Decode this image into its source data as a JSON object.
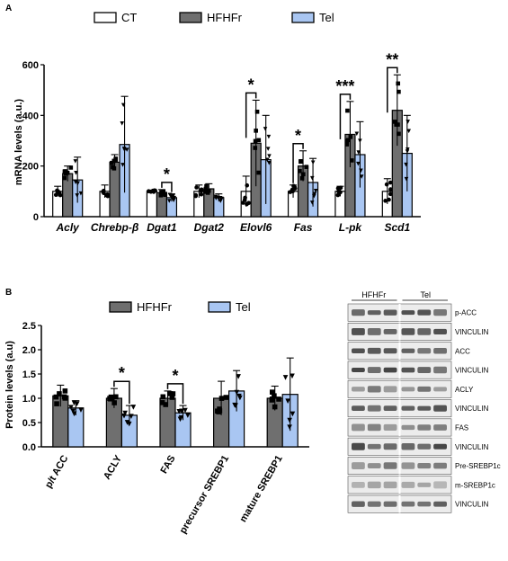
{
  "panel_a_label": "A",
  "panel_b_label": "B",
  "colors": {
    "CT": "#ffffff",
    "HFHFr": "#6f6f6f",
    "Tel": "#a9c6f2",
    "outline": "#000000"
  },
  "chart_data": [
    {
      "type": "bar",
      "panel": "A",
      "ylabel": "mRNA levels (a.u.)",
      "ylim": [
        0,
        600
      ],
      "yticks": [
        0,
        200,
        400,
        600
      ],
      "categories": [
        "Acly",
        "Chrebp-β",
        "Dgat1",
        "Dgat2",
        "Elovl6",
        "Fas",
        "L-pk",
        "Scd1"
      ],
      "series": [
        {
          "name": "CT",
          "values": [
            100,
            100,
            100,
            100,
            100,
            100,
            100,
            100
          ],
          "errors": [
            20,
            25,
            5,
            25,
            60,
            25,
            20,
            50
          ]
        },
        {
          "name": "HFHFr",
          "values": [
            170,
            215,
            95,
            110,
            290,
            200,
            325,
            420
          ],
          "errors": [
            30,
            30,
            12,
            20,
            170,
            60,
            130,
            140
          ]
        },
        {
          "name": "Tel",
          "values": [
            145,
            285,
            75,
            75,
            225,
            135,
            245,
            250
          ],
          "errors": [
            90,
            190,
            15,
            15,
            175,
            95,
            130,
            150
          ]
        }
      ],
      "significance": [
        {
          "category": "Dgat1",
          "between": [
            "HFHFr",
            "Tel"
          ],
          "label": "*"
        },
        {
          "category": "Elovl6",
          "between": [
            "CT",
            "HFHFr"
          ],
          "label": "*"
        },
        {
          "category": "Fas",
          "between": [
            "CT",
            "HFHFr"
          ],
          "label": "*"
        },
        {
          "category": "L-pk",
          "between": [
            "CT",
            "HFHFr"
          ],
          "label": "***"
        },
        {
          "category": "Scd1",
          "between": [
            "CT",
            "HFHFr"
          ],
          "label": "**"
        }
      ],
      "legend": "top"
    },
    {
      "type": "bar",
      "panel": "B",
      "ylabel": "Protein levels (a.u)",
      "ylim": [
        0,
        2.5
      ],
      "yticks": [
        "0.0",
        "0.5",
        "1.0",
        "1.5",
        "2.0",
        "2.5"
      ],
      "categories": [
        "p/t ACC",
        "ACLY",
        "FAS",
        "precursor SREBP1",
        "mature SREBP1"
      ],
      "series": [
        {
          "name": "HFHFr",
          "values": [
            1.05,
            1.0,
            1.0,
            1.0,
            1.0
          ],
          "errors": [
            0.22,
            0.2,
            0.15,
            0.35,
            0.25
          ]
        },
        {
          "name": "Tel",
          "values": [
            0.8,
            0.65,
            0.7,
            1.15,
            1.08
          ],
          "errors": [
            0.15,
            0.2,
            0.15,
            0.42,
            0.75
          ]
        }
      ],
      "significance": [
        {
          "category": "ACLY",
          "between": [
            "HFHFr",
            "Tel"
          ],
          "label": "*"
        },
        {
          "category": "FAS",
          "between": [
            "HFHFr",
            "Tel"
          ],
          "label": "*"
        }
      ],
      "legend": "top"
    }
  ],
  "blot": {
    "group_labels": [
      "HFHFr",
      "Tel"
    ],
    "rows": [
      {
        "label": "p-ACC",
        "band": "dark"
      },
      {
        "label": "VINCULIN",
        "band": "dark"
      },
      {
        "label": "ACC",
        "band": "dark"
      },
      {
        "label": "VINCULIN",
        "band": "dark"
      },
      {
        "label": "ACLY",
        "band": "mid"
      },
      {
        "label": "VINCULIN",
        "band": "dark"
      },
      {
        "label": "FAS",
        "band": "mid"
      },
      {
        "label": "VINCULIN",
        "band": "dark"
      },
      {
        "label": "Pre-SREBP1c",
        "band": "mid"
      },
      {
        "label": "m-SREBP1c",
        "band": "faint"
      },
      {
        "label": "VINCULIN",
        "band": "dark"
      }
    ]
  }
}
